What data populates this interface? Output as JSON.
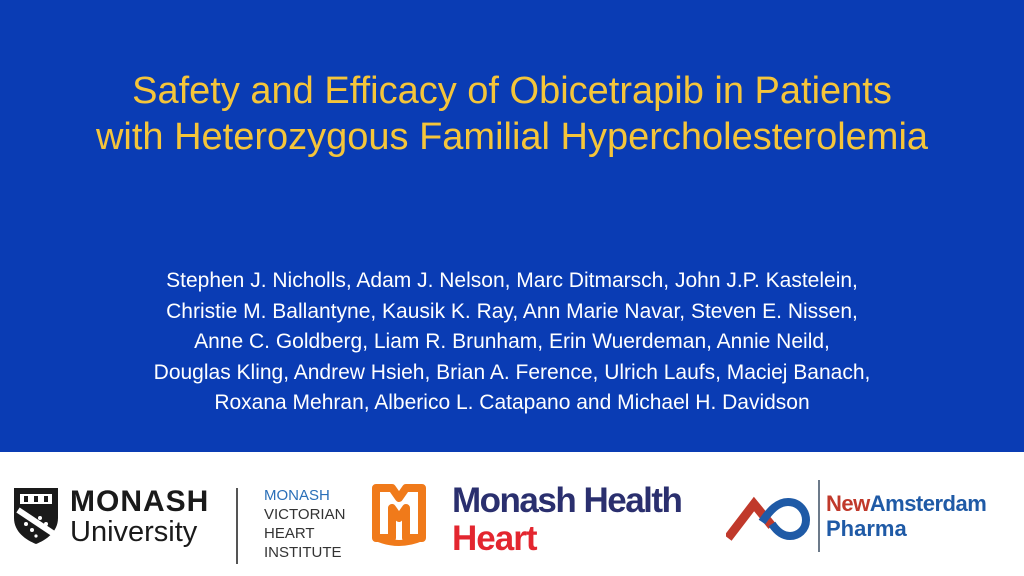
{
  "slide": {
    "title_lines": [
      "Safety and Efficacy of Obicetrapib in Patients",
      "with Heterozygous Familial Hypercholesterolemia"
    ],
    "author_lines": [
      "Stephen J. Nicholls, Adam J. Nelson, Marc Ditmarsch, John J.P. Kastelein,",
      "Christie M. Ballantyne, Kausik K. Ray, Ann Marie Navar, Steven E. Nissen,",
      "Anne C. Goldberg, Liam R. Brunham, Erin Wuerdeman, Annie Neild,",
      "Douglas Kling, Andrew Hsieh, Brian A. Ference, Ulrich Laufs, Maciej Banach,",
      "Roxana Mehran, Alberico L. Catapano and Michael H. Davidson"
    ],
    "colors": {
      "background": "#0a3cb4",
      "title": "#f5c53a",
      "authors": "#ffffff"
    }
  },
  "logos": {
    "monash_university": {
      "line1": "MONASH",
      "line2": "University",
      "icon": "monash-crest-icon"
    },
    "mvhi": {
      "lines": [
        "MONASH",
        "VICTORIAN",
        "HEART",
        "INSTITUTE"
      ]
    },
    "monash_health_heart": {
      "line1": "Monash Health",
      "line2": "Heart",
      "icon": "monash-health-heart-icon",
      "colors": {
        "navy": "#2a2f6e",
        "red": "#e3262f",
        "orange": "#f07a1a"
      }
    },
    "newamsterdam": {
      "word_new": "New",
      "word_amsterdam": "Amsterdam",
      "line2": "Pharma",
      "icon": "newamsterdam-mark-icon",
      "colors": {
        "red": "#c0392b",
        "blue": "#1f5aa6"
      }
    }
  }
}
